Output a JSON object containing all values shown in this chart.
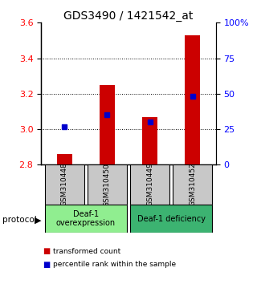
{
  "title": "GDS3490 / 1421542_at",
  "samples": [
    "GSM310448",
    "GSM310450",
    "GSM310449",
    "GSM310452"
  ],
  "red_values": [
    2.86,
    3.25,
    3.07,
    3.53
  ],
  "blue_percentiles": [
    27,
    35,
    30,
    48
  ],
  "ylim_left": [
    2.8,
    3.6
  ],
  "ylim_right": [
    0,
    100
  ],
  "yticks_left": [
    2.8,
    3.0,
    3.2,
    3.4,
    3.6
  ],
  "yticks_right": [
    0,
    25,
    50,
    75,
    100
  ],
  "ytick_labels_right": [
    "0",
    "25",
    "50",
    "75",
    "100%"
  ],
  "groups": [
    {
      "label": "Deaf-1\noverexpression",
      "samples": [
        0,
        1
      ],
      "color": "#90EE90"
    },
    {
      "label": "Deaf-1 deficiency",
      "samples": [
        2,
        3
      ],
      "color": "#3CB371"
    }
  ],
  "protocol_label": "protocol",
  "legend_red": "transformed count",
  "legend_blue": "percentile rank within the sample",
  "bar_width": 0.35,
  "red_color": "#CC0000",
  "blue_color": "#0000CC",
  "bg_color": "#C8C8C8",
  "title_fontsize": 10,
  "tick_fontsize": 8,
  "label_fontsize": 7
}
